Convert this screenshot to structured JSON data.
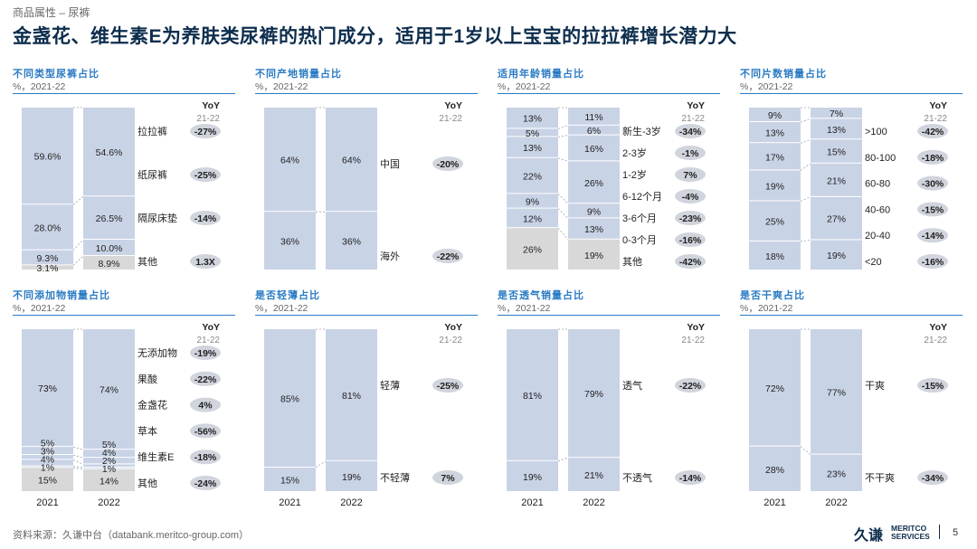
{
  "header": {
    "breadcrumb": "商品属性 – 尿裤",
    "title": "金盏花、维生素E为养肤类尿裤的热门成分，适用于1岁以上宝宝的拉拉裤增长潜力大"
  },
  "colors": {
    "bar": "#c9d3e6",
    "bar_other": "#d8d8d8",
    "accent": "#2a7bc4",
    "yoy_bubble": "#d0d4dc",
    "title": "#0d2d4d"
  },
  "chart_data": [
    {
      "type": "bar",
      "stacked": true,
      "title": "不同类型尿裤占比",
      "subtitle": "%，2021-22",
      "categories": [
        "2021",
        "2022"
      ],
      "show_x_labels": false,
      "yoy_header": "YoY",
      "yoy_sub": "21-22",
      "series": [
        {
          "name": "其他",
          "values": [
            3.1,
            8.9
          ],
          "labels": [
            "3.1%",
            "8.9%"
          ],
          "gray": true,
          "yoy": "1.3X"
        },
        {
          "name": "隔尿床垫",
          "values": [
            9.3,
            10.0
          ],
          "labels": [
            "9.3%",
            "10.0%"
          ],
          "yoy": "-14%"
        },
        {
          "name": "纸尿裤",
          "values": [
            28.0,
            26.5
          ],
          "labels": [
            "28.0%",
            "26.5%"
          ],
          "yoy": "-25%"
        },
        {
          "name": "拉拉裤",
          "values": [
            59.6,
            54.6
          ],
          "labels": [
            "59.6%",
            "54.6%"
          ],
          "yoy": "-27%"
        }
      ]
    },
    {
      "type": "bar",
      "stacked": true,
      "title": "不同产地销量占比",
      "subtitle": "%，2021-22",
      "categories": [
        "2021",
        "2022"
      ],
      "show_x_labels": false,
      "yoy_header": "YoY",
      "yoy_sub": "21-22",
      "series": [
        {
          "name": "海外",
          "values": [
            36,
            36
          ],
          "labels": [
            "36%",
            "36%"
          ],
          "yoy": "-22%"
        },
        {
          "name": "中国",
          "values": [
            64,
            64
          ],
          "labels": [
            "64%",
            "64%"
          ],
          "yoy": "-20%"
        }
      ]
    },
    {
      "type": "bar",
      "stacked": true,
      "title": "适用年龄销量占比",
      "subtitle": "%，2021-22",
      "categories": [
        "2021",
        "2022"
      ],
      "show_x_labels": false,
      "yoy_header": "YoY",
      "yoy_sub": "21-22",
      "series": [
        {
          "name": "其他",
          "values": [
            26,
            19
          ],
          "labels": [
            "26%",
            "19%"
          ],
          "gray": true,
          "yoy": "-42%"
        },
        {
          "name": "0-3个月",
          "values": [
            12,
            13
          ],
          "labels": [
            "12%",
            "13%"
          ],
          "yoy": "-16%"
        },
        {
          "name": "3-6个月",
          "values": [
            9,
            9
          ],
          "labels": [
            "9%",
            "9%"
          ],
          "yoy": "-23%"
        },
        {
          "name": "6-12个月",
          "values": [
            22,
            26
          ],
          "labels": [
            "22%",
            "26%"
          ],
          "yoy": "-4%"
        },
        {
          "name": "1-2岁",
          "values": [
            13,
            16
          ],
          "labels": [
            "13%",
            "16%"
          ],
          "yoy": "7%"
        },
        {
          "name": "2-3岁",
          "values": [
            5,
            6
          ],
          "labels": [
            "5%",
            "6%"
          ],
          "yoy": "-1%"
        },
        {
          "name": "新生-3岁",
          "values": [
            13,
            11
          ],
          "labels": [
            "13%",
            "11%"
          ],
          "yoy": "-34%"
        }
      ]
    },
    {
      "type": "bar",
      "stacked": true,
      "title": "不同片数销量占比",
      "subtitle": "%，2021-22",
      "categories": [
        "2021",
        "2022"
      ],
      "show_x_labels": false,
      "yoy_header": "YoY",
      "yoy_sub": "21-22",
      "series": [
        {
          "name": "<20",
          "values": [
            18,
            19
          ],
          "labels": [
            "18%",
            "19%"
          ],
          "yoy": "-16%"
        },
        {
          "name": "20-40",
          "values": [
            25,
            27
          ],
          "labels": [
            "25%",
            "27%"
          ],
          "yoy": "-14%"
        },
        {
          "name": "40-60",
          "values": [
            19,
            21
          ],
          "labels": [
            "19%",
            "21%"
          ],
          "yoy": "-15%"
        },
        {
          "name": "60-80",
          "values": [
            17,
            15
          ],
          "labels": [
            "17%",
            "15%"
          ],
          "yoy": "-30%"
        },
        {
          "name": "80-100",
          "values": [
            13,
            13
          ],
          "labels": [
            "13%",
            "13%"
          ],
          "yoy": "-18%"
        },
        {
          "name": ">100",
          "values": [
            9,
            7
          ],
          "labels": [
            "9%",
            "7%"
          ],
          "yoy": "-42%"
        }
      ]
    },
    {
      "type": "bar",
      "stacked": true,
      "title": "不同添加物销量占比",
      "subtitle": "%，2021-22",
      "categories": [
        "2021",
        "2022"
      ],
      "show_x_labels": true,
      "yoy_header": "YoY",
      "yoy_sub": "21-22",
      "series": [
        {
          "name": "其他",
          "values": [
            15,
            14
          ],
          "labels": [
            "15%",
            "14%"
          ],
          "gray": true,
          "yoy": "-24%"
        },
        {
          "name": "维生素E",
          "values": [
            1,
            1
          ],
          "labels": [
            "1%",
            "1%"
          ],
          "yoy": "-18%"
        },
        {
          "name": "草本",
          "values": [
            4,
            2
          ],
          "labels": [
            "4%",
            "2%"
          ],
          "yoy": "-56%"
        },
        {
          "name": "金盏花",
          "values": [
            3,
            4
          ],
          "labels": [
            "3%",
            "4%"
          ],
          "yoy": "4%"
        },
        {
          "name": "果酸",
          "values": [
            5,
            5
          ],
          "labels": [
            "5%",
            "5%"
          ],
          "yoy": "-22%"
        },
        {
          "name": "无添加物",
          "values": [
            73,
            74
          ],
          "labels": [
            "73%",
            "74%"
          ],
          "yoy": "-19%"
        }
      ]
    },
    {
      "type": "bar",
      "stacked": true,
      "title": "是否轻薄占比",
      "subtitle": "%，2021-22",
      "categories": [
        "2021",
        "2022"
      ],
      "show_x_labels": true,
      "yoy_header": "YoY",
      "yoy_sub": "21-22",
      "series": [
        {
          "name": "不轻薄",
          "values": [
            15,
            19
          ],
          "labels": [
            "15%",
            "19%"
          ],
          "yoy": "7%"
        },
        {
          "name": "轻薄",
          "values": [
            85,
            81
          ],
          "labels": [
            "85%",
            "81%"
          ],
          "yoy": "-25%"
        }
      ]
    },
    {
      "type": "bar",
      "stacked": true,
      "title": "是否透气销量占比",
      "subtitle": "%，2021-22",
      "categories": [
        "2021",
        "2022"
      ],
      "show_x_labels": true,
      "yoy_header": "YoY",
      "yoy_sub": "21-22",
      "series": [
        {
          "name": "不透气",
          "values": [
            19,
            21
          ],
          "labels": [
            "19%",
            "21%"
          ],
          "yoy": "-14%"
        },
        {
          "name": "透气",
          "values": [
            81,
            79
          ],
          "labels": [
            "81%",
            "79%"
          ],
          "yoy": "-22%"
        }
      ]
    },
    {
      "type": "bar",
      "stacked": true,
      "title": "是否干爽占比",
      "subtitle": "%，2021-22",
      "categories": [
        "2021",
        "2022"
      ],
      "show_x_labels": true,
      "yoy_header": "YoY",
      "yoy_sub": "21-22",
      "series": [
        {
          "name": "不干爽",
          "values": [
            28,
            23
          ],
          "labels": [
            "28%",
            "23%"
          ],
          "yoy": "-34%"
        },
        {
          "name": "干爽",
          "values": [
            72,
            77
          ],
          "labels": [
            "72%",
            "77%"
          ],
          "yoy": "-15%"
        }
      ]
    }
  ],
  "footer": {
    "source": "资料来源：久谦中台（databank.meritco-group.com）",
    "logo_cn": "久谦",
    "logo_en_line1": "MERITCO",
    "logo_en_line2": "SERVICES",
    "page_number": "5"
  }
}
